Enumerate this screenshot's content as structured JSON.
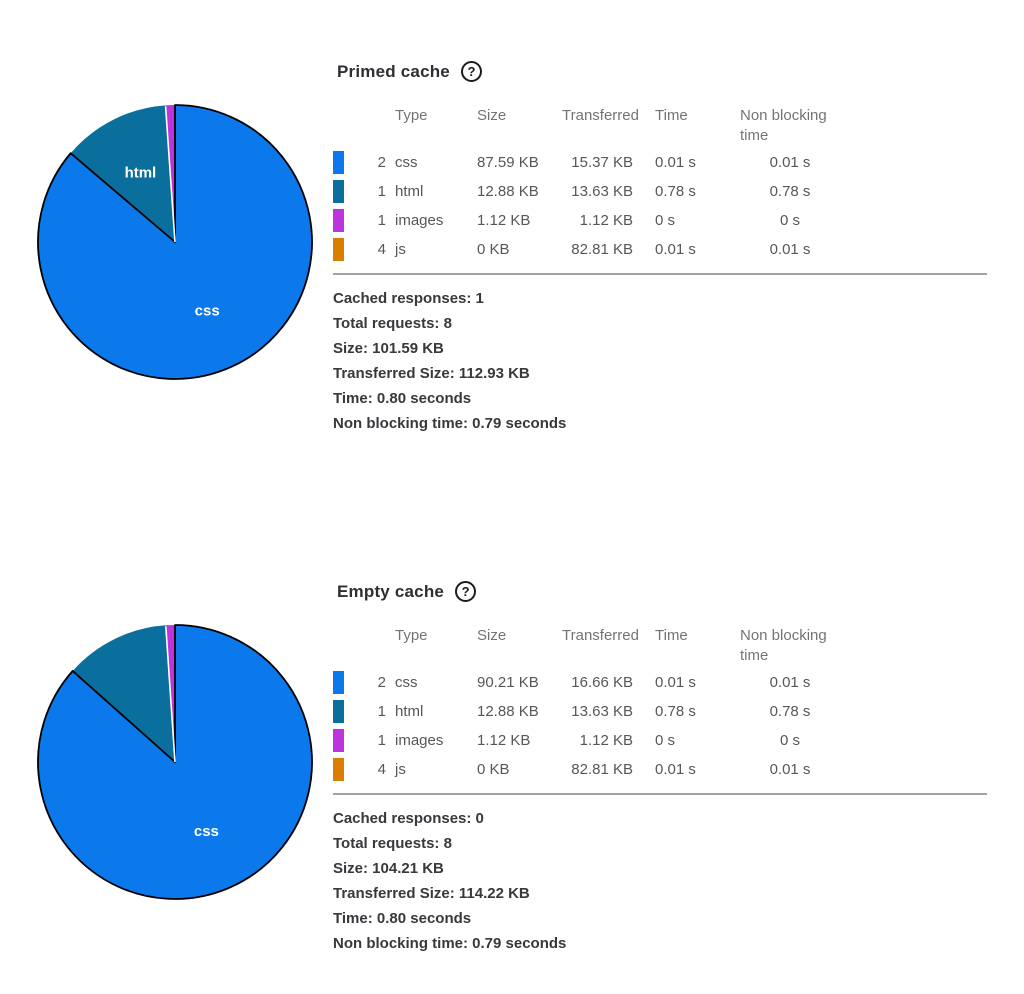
{
  "colors": {
    "css": "#0b78ec",
    "html": "#0a6f9d",
    "images": "#bd34dd",
    "js": "#d97e00",
    "pie_outline": "#000000",
    "pie_label_text": "#ffffff"
  },
  "chart_data": [
    {
      "type": "pie",
      "title": "Primed cache",
      "categories": [
        "css",
        "html",
        "images",
        "js"
      ],
      "values": [
        87.59,
        12.88,
        1.12,
        0
      ],
      "unit": "KB",
      "colors": [
        "#0b78ec",
        "#0a6f9d",
        "#bd34dd",
        "#d97e00"
      ],
      "slice_labels": [
        "css",
        "html"
      ],
      "legend_position": "table-right"
    },
    {
      "type": "pie",
      "title": "Empty cache",
      "categories": [
        "css",
        "html",
        "images",
        "js"
      ],
      "values": [
        90.21,
        12.88,
        1.12,
        0
      ],
      "unit": "KB",
      "colors": [
        "#0b78ec",
        "#0a6f9d",
        "#bd34dd",
        "#d97e00"
      ],
      "slice_labels": [
        "css"
      ],
      "legend_position": "table-right"
    }
  ],
  "sections": [
    {
      "title": "Primed cache",
      "help_icon": "?",
      "table": {
        "headers": [
          "Type",
          "Size",
          "Transferred",
          "Time",
          "Non blocking time"
        ],
        "rows": [
          {
            "color": "#0b78ec",
            "count": "2",
            "type": "css",
            "size": "87.59 KB",
            "transferred": "15.37 KB",
            "time": "0.01 s",
            "non_blocking_time": "0.01 s"
          },
          {
            "color": "#0a6f9d",
            "count": "1",
            "type": "html",
            "size": "12.88 KB",
            "transferred": "13.63 KB",
            "time": "0.78 s",
            "non_blocking_time": "0.78 s"
          },
          {
            "color": "#bd34dd",
            "count": "1",
            "type": "images",
            "size": "1.12 KB",
            "transferred": "1.12 KB",
            "time": "0 s",
            "non_blocking_time": "0 s"
          },
          {
            "color": "#d97e00",
            "count": "4",
            "type": "js",
            "size": "0 KB",
            "transferred": "82.81 KB",
            "time": "0.01 s",
            "non_blocking_time": "0.01 s"
          }
        ]
      },
      "summary": [
        "Cached responses: 1",
        "Total requests: 8",
        "Size: 101.59 KB",
        "Transferred Size: 112.93 KB",
        "Time: 0.80 seconds",
        "Non blocking time: 0.79 seconds"
      ]
    },
    {
      "title": "Empty cache",
      "help_icon": "?",
      "table": {
        "headers": [
          "Type",
          "Size",
          "Transferred",
          "Time",
          "Non blocking time"
        ],
        "rows": [
          {
            "color": "#0b78ec",
            "count": "2",
            "type": "css",
            "size": "90.21 KB",
            "transferred": "16.66 KB",
            "time": "0.01 s",
            "non_blocking_time": "0.01 s"
          },
          {
            "color": "#0a6f9d",
            "count": "1",
            "type": "html",
            "size": "12.88 KB",
            "transferred": "13.63 KB",
            "time": "0.78 s",
            "non_blocking_time": "0.78 s"
          },
          {
            "color": "#bd34dd",
            "count": "1",
            "type": "images",
            "size": "1.12 KB",
            "transferred": "1.12 KB",
            "time": "0 s",
            "non_blocking_time": "0 s"
          },
          {
            "color": "#d97e00",
            "count": "4",
            "type": "js",
            "size": "0 KB",
            "transferred": "82.81 KB",
            "time": "0.01 s",
            "non_blocking_time": "0.01 s"
          }
        ]
      },
      "summary": [
        "Cached responses: 0",
        "Total requests: 8",
        "Size: 104.21 KB",
        "Transferred Size: 114.22 KB",
        "Time: 0.80 seconds",
        "Non blocking time: 0.79 seconds"
      ]
    }
  ]
}
